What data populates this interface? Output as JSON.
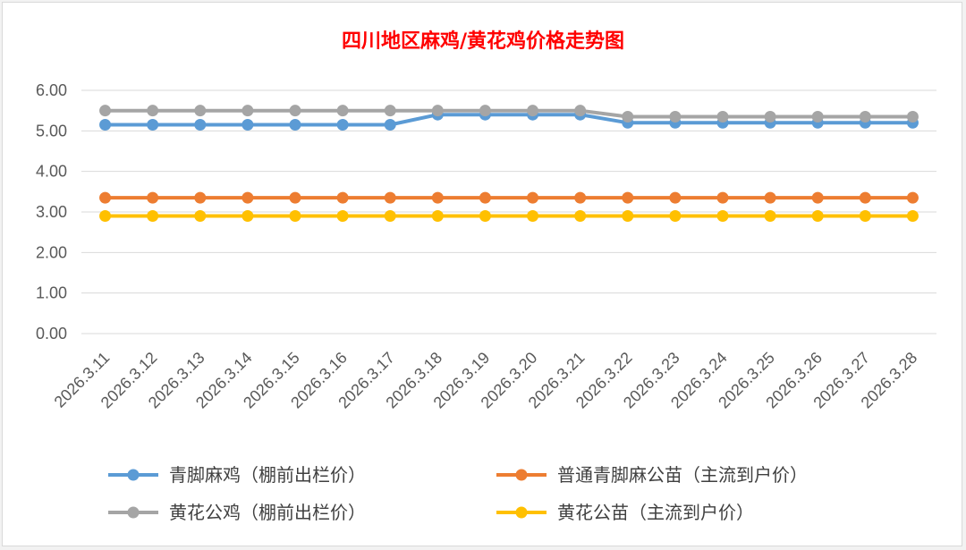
{
  "chart_data": {
    "type": "line",
    "title": "四川地区麻鸡/黄花鸡价格走势图",
    "xlabel": "",
    "ylabel": "",
    "ylim": [
      0,
      6
    ],
    "yticks": [
      "0.00",
      "1.00",
      "2.00",
      "3.00",
      "4.00",
      "5.00",
      "6.00"
    ],
    "grid": true,
    "legend_position": "bottom",
    "categories": [
      "2026.3.11",
      "2026.3.12",
      "2026.3.13",
      "2026.3.14",
      "2026.3.15",
      "2026.3.16",
      "2026.3.17",
      "2026.3.18",
      "2026.3.19",
      "2026.3.20",
      "2026.3.21",
      "2026.3.22",
      "2026.3.23",
      "2026.3.24",
      "2026.3.25",
      "2026.3.26",
      "2026.3.27",
      "2026.3.28"
    ],
    "series": [
      {
        "name": "青脚麻鸡（棚前出栏价）",
        "color": "#5b9bd5",
        "values": [
          5.15,
          5.15,
          5.15,
          5.15,
          5.15,
          5.15,
          5.15,
          5.4,
          5.4,
          5.4,
          5.4,
          5.2,
          5.2,
          5.2,
          5.2,
          5.2,
          5.2,
          5.2
        ]
      },
      {
        "name": "普通青脚麻公苗（主流到户价）",
        "color": "#ed7d31",
        "values": [
          3.35,
          3.35,
          3.35,
          3.35,
          3.35,
          3.35,
          3.35,
          3.35,
          3.35,
          3.35,
          3.35,
          3.35,
          3.35,
          3.35,
          3.35,
          3.35,
          3.35,
          3.35
        ]
      },
      {
        "name": "黄花公鸡（棚前出栏价）",
        "color": "#a5a5a5",
        "values": [
          5.5,
          5.5,
          5.5,
          5.5,
          5.5,
          5.5,
          5.5,
          5.5,
          5.5,
          5.5,
          5.5,
          5.35,
          5.35,
          5.35,
          5.35,
          5.35,
          5.35,
          5.35
        ]
      },
      {
        "name": "黄花公苗（主流到户价）",
        "color": "#ffc000",
        "values": [
          2.9,
          2.9,
          2.9,
          2.9,
          2.9,
          2.9,
          2.9,
          2.9,
          2.9,
          2.9,
          2.9,
          2.9,
          2.9,
          2.9,
          2.9,
          2.9,
          2.9,
          2.9
        ]
      }
    ],
    "colors": {
      "title": "#ff0000",
      "gridline": "#d9d9d9",
      "tick_text": "#595959",
      "legend_text": "#404040"
    }
  }
}
